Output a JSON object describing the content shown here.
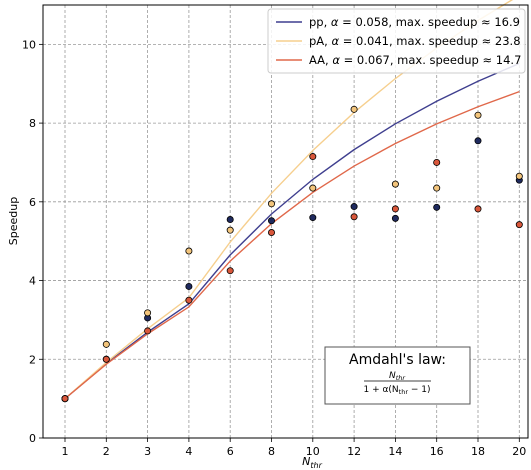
{
  "chart_data": {
    "type": "line",
    "title": "",
    "xlabel_main": "N",
    "xlabel_sub": "thr",
    "ylabel": "Speedup",
    "categories": [
      "1",
      "2",
      "3",
      "4",
      "6",
      "8",
      "10",
      "12",
      "14",
      "16",
      "18",
      "20"
    ],
    "ylim": [
      0,
      11
    ],
    "yticks": [
      "0",
      "2",
      "4",
      "6",
      "8",
      "10"
    ],
    "grid": true,
    "legend_position": "top-right",
    "series": [
      {
        "name": "pp, α = 0.058, max. speedup ≈ 16.9",
        "legend_prefix": "pp, ",
        "legend_rest": " = 0.058, max. speedup ≈ 16.9",
        "alpha": 0.058,
        "line_color": "#3f3f8f",
        "marker_color": "#1f2a5e",
        "values": [
          1.0,
          2.0,
          3.05,
          3.85,
          5.55,
          5.52,
          5.6,
          5.88,
          5.58,
          5.86,
          7.55,
          6.55
        ]
      },
      {
        "name": "pA, α = 0.041, max. speedup ≈ 23.8",
        "legend_prefix": "pA, ",
        "legend_rest": " = 0.041, max. speedup ≈ 23.8",
        "alpha": 0.041,
        "line_color": "#f6cf8e",
        "marker_color": "#f3c57c",
        "values": [
          1.0,
          2.38,
          3.18,
          4.75,
          5.28,
          5.95,
          6.35,
          8.35,
          6.45,
          6.35,
          8.2,
          6.65
        ]
      },
      {
        "name": "AA, α = 0.067, max. speedup ≈ 14.7",
        "legend_prefix": "AA, ",
        "legend_rest": " = 0.067, max. speedup ≈ 14.7",
        "alpha": 0.067,
        "line_color": "#e0684a",
        "marker_color": "#d9573b",
        "values": [
          1.0,
          2.0,
          2.72,
          3.5,
          4.25,
          5.22,
          7.15,
          5.62,
          5.82,
          7.0,
          5.82,
          5.42
        ]
      }
    ],
    "annotation": {
      "title": "Amdahl's law:",
      "numerator_main": "N",
      "numerator_sub": "thr",
      "denominator_prefix": "1 + α(N",
      "denominator_sub": "thr",
      "denominator_suffix": " − 1)"
    }
  }
}
